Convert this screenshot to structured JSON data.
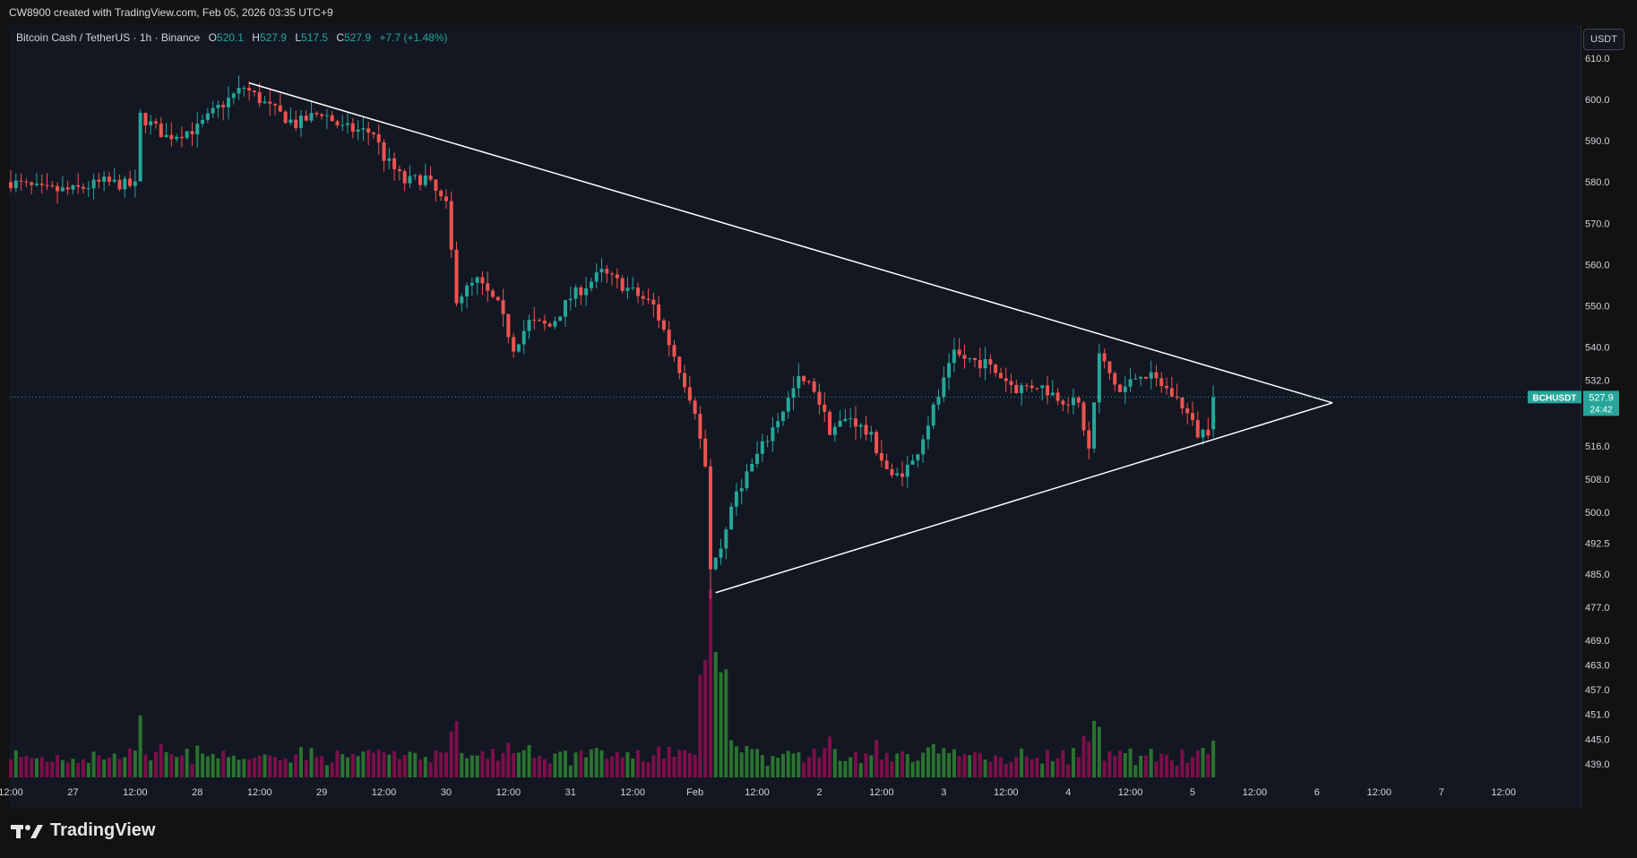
{
  "header": {
    "credit": "CW8900 created with TradingView.com, Feb 05, 2026 03:35 UTC+9"
  },
  "legend": {
    "symbol": "Bitcoin Cash / TetherUS · 1h · Binance",
    "o_label": "O",
    "o_value": "520.1",
    "h_label": "H",
    "h_value": "527.9",
    "l_label": "L",
    "l_value": "517.5",
    "c_label": "C",
    "c_value": "527.9",
    "change": "+7.7 (+1.48%)"
  },
  "currency_button": "USDT",
  "price_tag": {
    "symbol": "BCHUSDT",
    "price": "527.9",
    "countdown": "24:42"
  },
  "brand": {
    "name": "TradingView"
  },
  "colors": {
    "up": "#26a69a",
    "down": "#ef5350",
    "vol_up": "#2e7d32",
    "vol_down": "#880e4f",
    "background": "#131722",
    "trendline": "#ffffff",
    "last_price": "#26a69a"
  },
  "chart_data": {
    "type": "candlestick",
    "ylim": [
      435,
      612
    ],
    "y_ticks": [
      610.0,
      600.0,
      590.0,
      580.0,
      570.0,
      560.0,
      550.0,
      540.0,
      532.0,
      516.0,
      508.0,
      500.0,
      492.5,
      485.0,
      477.0,
      469.0,
      463.0,
      457.0,
      451.0,
      445.0,
      439.0
    ],
    "x_ticks": [
      {
        "label": "12:00",
        "t": 0
      },
      {
        "label": "27",
        "t": 12
      },
      {
        "label": "12:00",
        "t": 24
      },
      {
        "label": "28",
        "t": 36
      },
      {
        "label": "12:00",
        "t": 48
      },
      {
        "label": "29",
        "t": 60
      },
      {
        "label": "12:00",
        "t": 72
      },
      {
        "label": "30",
        "t": 84
      },
      {
        "label": "12:00",
        "t": 96
      },
      {
        "label": "31",
        "t": 108
      },
      {
        "label": "12:00",
        "t": 120
      },
      {
        "label": "Feb",
        "t": 132
      },
      {
        "label": "12:00",
        "t": 144
      },
      {
        "label": "2",
        "t": 156
      },
      {
        "label": "12:00",
        "t": 168
      },
      {
        "label": "3",
        "t": 180
      },
      {
        "label": "12:00",
        "t": 192
      },
      {
        "label": "4",
        "t": 204
      },
      {
        "label": "12:00",
        "t": 216
      },
      {
        "label": "5",
        "t": 228
      },
      {
        "label": "12:00",
        "t": 240
      },
      {
        "label": "6",
        "t": 252
      },
      {
        "label": "12:00",
        "t": 264
      },
      {
        "label": "7",
        "t": 276
      },
      {
        "label": "12:00",
        "t": 288
      }
    ],
    "anchors": [
      {
        "t": 0,
        "p": 580
      },
      {
        "t": 6,
        "p": 578
      },
      {
        "t": 12,
        "p": 578
      },
      {
        "t": 18,
        "p": 580
      },
      {
        "t": 24,
        "p": 579
      },
      {
        "t": 25,
        "p": 596
      },
      {
        "t": 30,
        "p": 591
      },
      {
        "t": 36,
        "p": 593
      },
      {
        "t": 40,
        "p": 598
      },
      {
        "t": 45,
        "p": 603
      },
      {
        "t": 50,
        "p": 598
      },
      {
        "t": 55,
        "p": 594
      },
      {
        "t": 60,
        "p": 597
      },
      {
        "t": 64,
        "p": 593
      },
      {
        "t": 70,
        "p": 592
      },
      {
        "t": 72,
        "p": 586
      },
      {
        "t": 76,
        "p": 580
      },
      {
        "t": 80,
        "p": 581
      },
      {
        "t": 84,
        "p": 574
      },
      {
        "t": 86,
        "p": 552
      },
      {
        "t": 90,
        "p": 556
      },
      {
        "t": 94,
        "p": 550
      },
      {
        "t": 97,
        "p": 540
      },
      {
        "t": 100,
        "p": 546
      },
      {
        "t": 104,
        "p": 545
      },
      {
        "t": 108,
        "p": 552
      },
      {
        "t": 114,
        "p": 558
      },
      {
        "t": 118,
        "p": 555
      },
      {
        "t": 124,
        "p": 550
      },
      {
        "t": 128,
        "p": 538
      },
      {
        "t": 132,
        "p": 525
      },
      {
        "t": 134,
        "p": 510
      },
      {
        "t": 135,
        "p": 485
      },
      {
        "t": 137,
        "p": 490
      },
      {
        "t": 140,
        "p": 505
      },
      {
        "t": 146,
        "p": 518
      },
      {
        "t": 152,
        "p": 532
      },
      {
        "t": 155,
        "p": 530
      },
      {
        "t": 158,
        "p": 520
      },
      {
        "t": 162,
        "p": 523
      },
      {
        "t": 166,
        "p": 518
      },
      {
        "t": 170,
        "p": 508
      },
      {
        "t": 174,
        "p": 512
      },
      {
        "t": 178,
        "p": 525
      },
      {
        "t": 182,
        "p": 538
      },
      {
        "t": 188,
        "p": 536
      },
      {
        "t": 194,
        "p": 530
      },
      {
        "t": 198,
        "p": 531
      },
      {
        "t": 202,
        "p": 528
      },
      {
        "t": 206,
        "p": 526
      },
      {
        "t": 208,
        "p": 515
      },
      {
        "t": 210,
        "p": 538
      },
      {
        "t": 214,
        "p": 529
      },
      {
        "t": 218,
        "p": 534
      },
      {
        "t": 222,
        "p": 531
      },
      {
        "t": 226,
        "p": 526
      },
      {
        "t": 229,
        "p": 519
      },
      {
        "t": 231,
        "p": 520
      },
      {
        "t": 232,
        "p": 527.9
      }
    ],
    "trendlines": [
      {
        "from": {
          "t": 46,
          "p": 604
        },
        "to": {
          "t": 255,
          "p": 526.5
        }
      },
      {
        "from": {
          "t": 136,
          "p": 480.5
        },
        "to": {
          "t": 255,
          "p": 526.5
        }
      }
    ],
    "volume_spikes": [
      {
        "t": 135,
        "scale": 1.0
      }
    ],
    "last_price": 527.9
  }
}
